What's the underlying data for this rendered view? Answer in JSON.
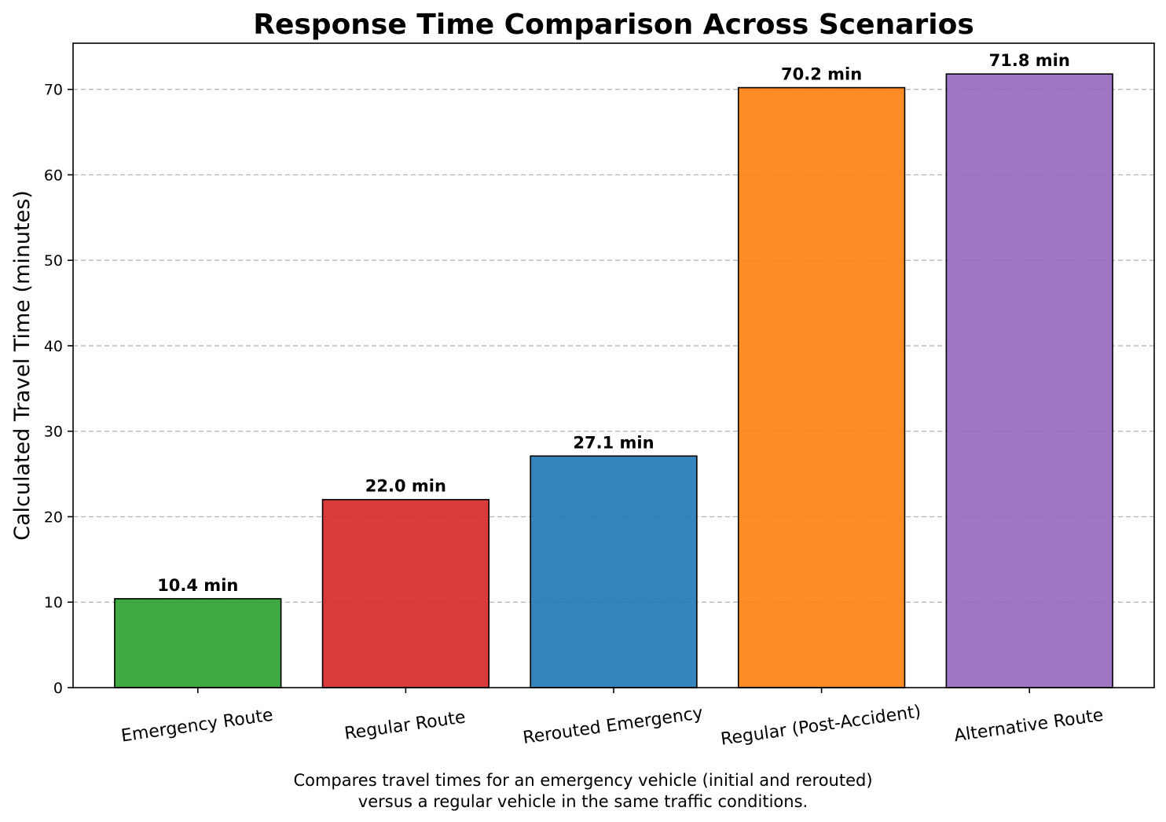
{
  "chart_data": {
    "type": "bar",
    "title": "Response Time Comparison Across Scenarios",
    "xlabel": "",
    "ylabel": "Calculated Travel Time (minutes)",
    "categories": [
      "Emergency Route",
      "Regular Route",
      "Rerouted Emergency",
      "Regular (Post-Accident)",
      "Alternative Route"
    ],
    "values": [
      10.4,
      22.0,
      27.1,
      70.2,
      71.8
    ],
    "data_labels": [
      "10.4 min",
      "22.0 min",
      "27.1 min",
      "70.2 min",
      "71.8 min"
    ],
    "colors": [
      "#2ca02c",
      "#d62728",
      "#1f77b4",
      "#ff7f0e",
      "#9467bd"
    ],
    "ylim": [
      0,
      75.4
    ],
    "yticks": [
      0,
      10,
      20,
      30,
      40,
      50,
      60,
      70
    ],
    "grid": "y-dashed",
    "caption_lines": [
      "Compares travel times for an emergency vehicle (initial and rerouted)",
      "versus a regular vehicle in the same traffic conditions."
    ]
  }
}
